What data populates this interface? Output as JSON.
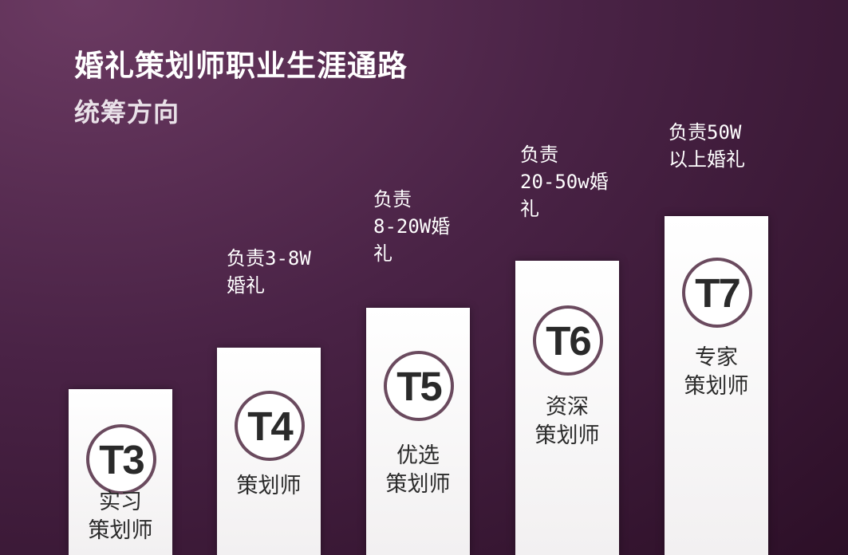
{
  "header": {
    "title": "婚礼策划师职业生涯通路",
    "subtitle": "统筹方向"
  },
  "colors": {
    "background": "#4a2346",
    "column": "#ffffff",
    "badge_ring": "#6a4a5e",
    "text_light": "#ffffff",
    "text_dark": "#2b2b2b"
  },
  "levels": [
    {
      "code": "T3",
      "role_lines": [
        "实习",
        "策划师"
      ],
      "note_lines": []
    },
    {
      "code": "T4",
      "role_lines": [
        "策划师"
      ],
      "note_lines": [
        "负责3-8W",
        "婚礼"
      ]
    },
    {
      "code": "T5",
      "role_lines": [
        "优选",
        "策划师"
      ],
      "note_lines": [
        "负责",
        "8-20W婚",
        "礼"
      ]
    },
    {
      "code": "T6",
      "role_lines": [
        "资深",
        "策划师"
      ],
      "note_lines": [
        "负责",
        "20-50w婚",
        "礼"
      ]
    },
    {
      "code": "T7",
      "role_lines": [
        "专家",
        "策划师"
      ],
      "note_lines": [
        "负责50W",
        "以上婚礼"
      ]
    }
  ]
}
